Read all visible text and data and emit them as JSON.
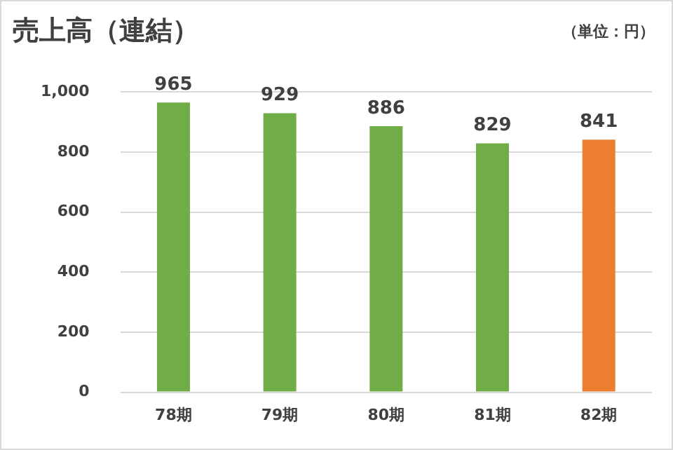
{
  "chart_data": {
    "type": "bar",
    "title": "売上高（連結）",
    "annotations": [
      "（単位：円）"
    ],
    "categories": [
      "78期",
      "79期",
      "80期",
      "81期",
      "82期"
    ],
    "values": [
      965,
      929,
      886,
      829,
      841
    ],
    "colors": [
      "#70ad47",
      "#70ad47",
      "#70ad47",
      "#70ad47",
      "#ed7d31"
    ],
    "ylim": [
      0,
      1000
    ],
    "yticks": [
      0,
      200,
      400,
      600,
      800,
      {
        "value": 1000,
        "label": "1,000"
      }
    ],
    "grid": "y",
    "data_labels": true,
    "legend": false
  }
}
